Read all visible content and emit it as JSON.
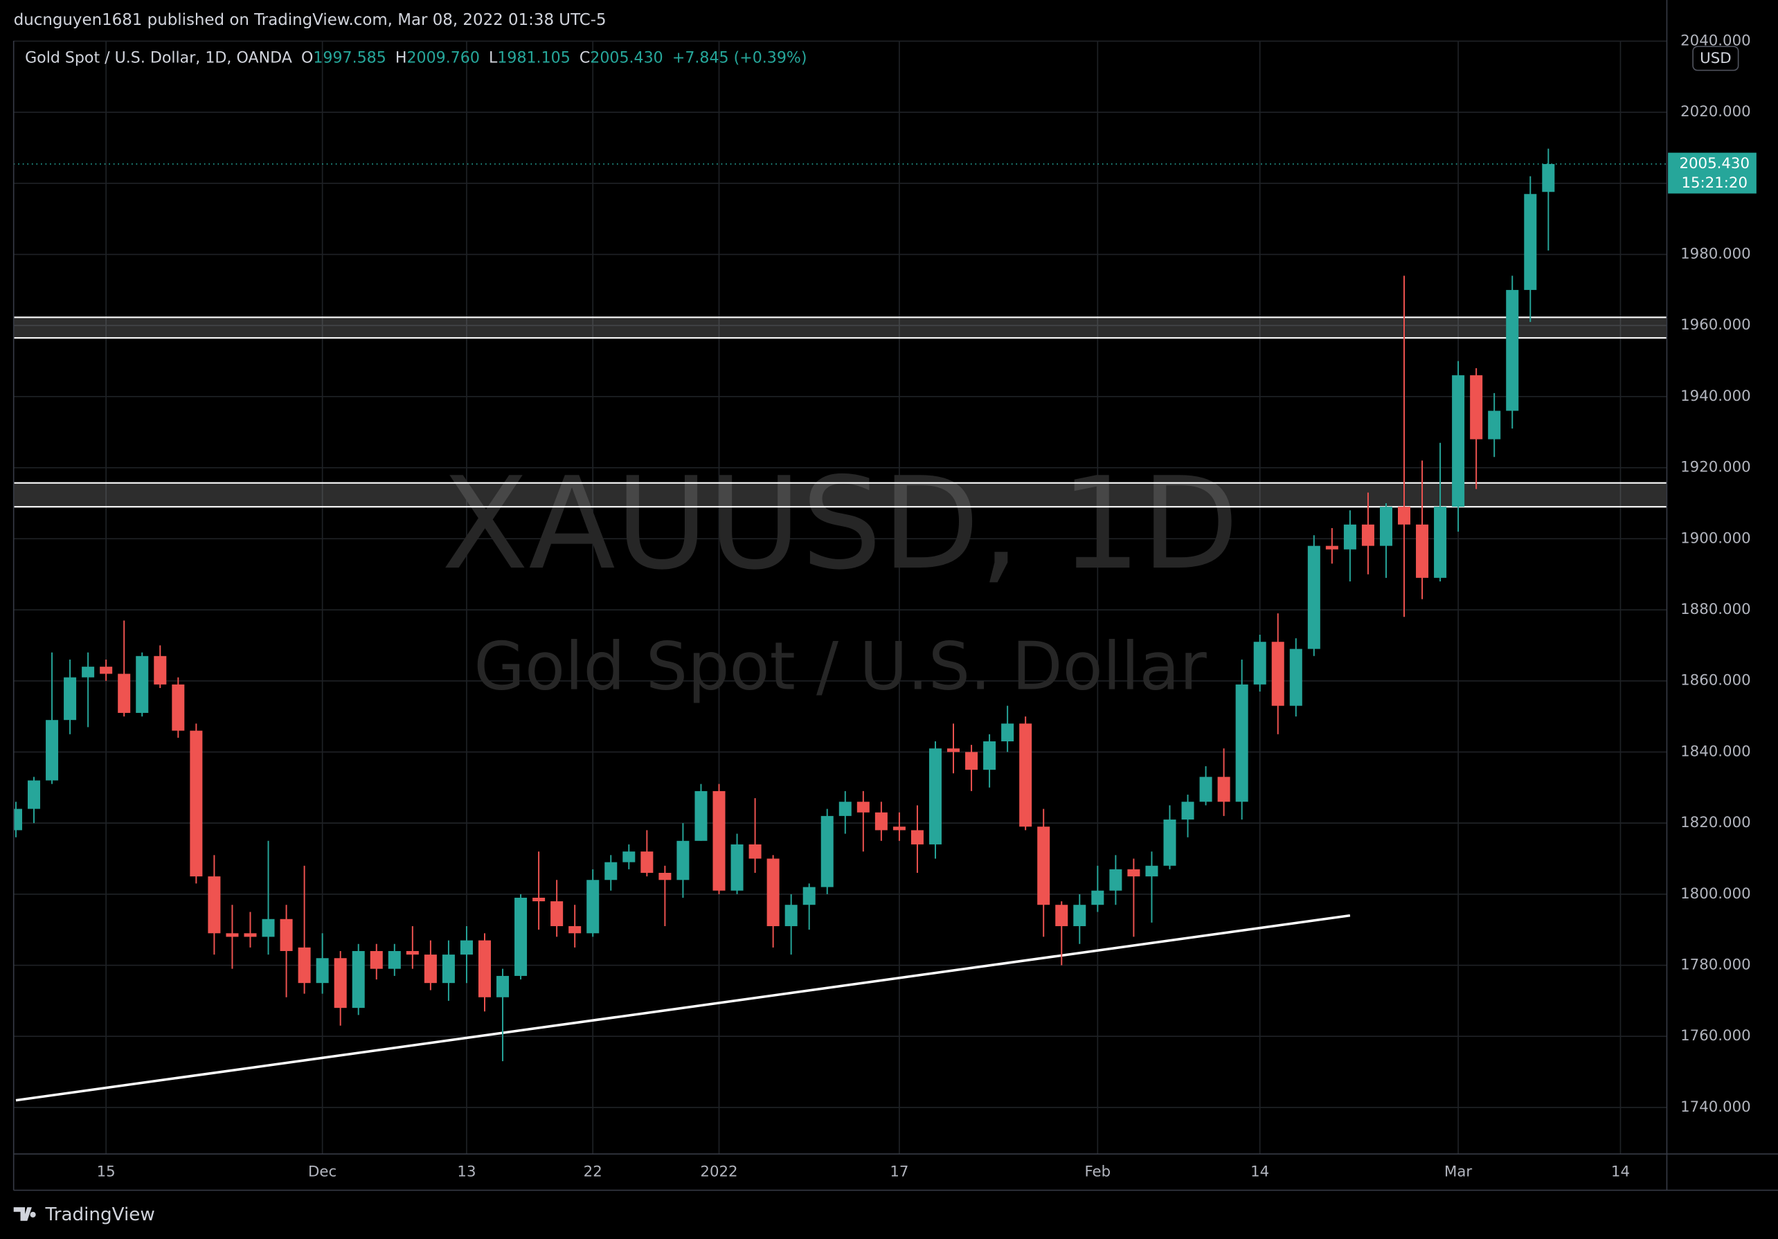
{
  "header": "ducnguyen1681 published on TradingView.com, Mar 08, 2022 01:38 UTC-5",
  "footer": "TradingView",
  "chart_data": {
    "type": "candlestick",
    "title": "Gold Spot / U.S. Dollar, 1D, OANDA",
    "legend": [
      {
        "label": "O",
        "value": "1997.585"
      },
      {
        "label": "H",
        "value": "2009.760"
      },
      {
        "label": "L",
        "value": "1981.105"
      },
      {
        "label": "C",
        "value": "2005.430"
      }
    ],
    "change": "+7.845 (+0.39%)",
    "watermark": [
      "XAUUSD, 1D",
      "Gold Spot / U.S. Dollar"
    ],
    "currency": "USD",
    "last_price": {
      "value": 2005.43,
      "label": "2005.430"
    },
    "countdown": "15:21:20",
    "up_color": "#26a69a",
    "down_color": "#ef5350",
    "grid": true,
    "categories": [
      null,
      null,
      null,
      null,
      null,
      "15",
      null,
      null,
      null,
      null,
      null,
      null,
      null,
      null,
      null,
      null,
      null,
      "Dec",
      null,
      null,
      null,
      null,
      null,
      null,
      null,
      "13",
      null,
      null,
      null,
      null,
      null,
      null,
      "22",
      null,
      null,
      null,
      null,
      null,
      null,
      "2022",
      null,
      null,
      null,
      null,
      null,
      null,
      null,
      null,
      null,
      "17",
      null,
      null,
      null,
      null,
      null,
      null,
      null,
      null,
      null,
      null,
      "Feb",
      null,
      null,
      null,
      null,
      null,
      null,
      null,
      null,
      "14",
      null,
      null,
      null,
      null,
      null,
      null,
      null,
      null,
      null,
      null,
      "Mar",
      null,
      null,
      null,
      null,
      null,
      null,
      null,
      null,
      "14",
      null
    ],
    "open": [
      1818,
      1824,
      1832,
      1849,
      1861,
      1864,
      1862,
      1851,
      1867,
      1859,
      1846,
      1805,
      1789,
      1789,
      1788,
      1793,
      1785,
      1775,
      1782,
      1768,
      1784,
      1779,
      1784,
      1783,
      1775,
      1783,
      1787,
      1771,
      1777,
      1799,
      1798,
      1791,
      1789,
      1804,
      1809,
      1812,
      1806,
      1804,
      1815,
      1829,
      1801,
      1814,
      1810,
      1791,
      1797,
      1802,
      1822,
      1826,
      1823,
      1819,
      1818,
      1814,
      1841,
      1840,
      1835,
      1843,
      1848,
      1819,
      1797,
      1791,
      1797,
      1801,
      1807,
      1805,
      1808,
      1821,
      1826,
      1833,
      1826,
      1859,
      1871,
      1853,
      1869,
      1898,
      1897,
      1904,
      1898,
      1909,
      1904,
      1889,
      1909,
      1946,
      1928,
      1936,
      1970,
      1997.585,
      null,
      null,
      null,
      null,
      null
    ],
    "high": [
      1826,
      1833,
      1868,
      1866,
      1868,
      1866,
      1877,
      1868,
      1870,
      1861,
      1848,
      1811,
      1797,
      1795,
      1815,
      1797,
      1808,
      1789,
      1784,
      1786,
      1786,
      1786,
      1791,
      1787,
      1787,
      1791,
      1789,
      1779,
      1800,
      1812,
      1804,
      1797,
      1807,
      1811,
      1814,
      1818,
      1808,
      1820,
      1831,
      1831,
      1817,
      1827,
      1811,
      1800,
      1803,
      1824,
      1829,
      1829,
      1826,
      1823,
      1825,
      1843,
      1848,
      1842,
      1845,
      1853,
      1850,
      1824,
      1798,
      1800,
      1808,
      1811,
      1810,
      1812,
      1825,
      1828,
      1836,
      1841,
      1866,
      1873,
      1879,
      1872,
      1901,
      1903,
      1908,
      1913,
      1910,
      1974,
      1922,
      1927,
      1950,
      1948,
      1941,
      1974,
      2002,
      2009.76,
      null,
      null,
      null,
      null,
      null
    ],
    "low": [
      1816,
      1820,
      1831,
      1845,
      1847,
      1860,
      1850,
      1850,
      1858,
      1844,
      1803,
      1783,
      1779,
      1785,
      1783,
      1771,
      1772,
      1772,
      1763,
      1766,
      1776,
      1777,
      1779,
      1773,
      1770,
      1775,
      1767,
      1753,
      1776,
      1790,
      1788,
      1785,
      1788,
      1801,
      1807,
      1805,
      1791,
      1799,
      1815,
      1800,
      1800,
      1806,
      1785,
      1783,
      1790,
      1800,
      1817,
      1812,
      1815,
      1815,
      1806,
      1810,
      1834,
      1829,
      1830,
      1840,
      1818,
      1788,
      1780,
      1786,
      1795,
      1797,
      1788,
      1792,
      1807,
      1816,
      1825,
      1822,
      1821,
      1857,
      1845,
      1850,
      1867,
      1893,
      1888,
      1890,
      1889,
      1878,
      1883,
      1888,
      1902,
      1914,
      1923,
      1931,
      1961,
      1981.105,
      null,
      null,
      null,
      null,
      null
    ],
    "close": [
      1824,
      1832,
      1849,
      1861,
      1864,
      1862,
      1851,
      1867,
      1859,
      1846,
      1805,
      1789,
      1788,
      1788,
      1793,
      1784,
      1775,
      1782,
      1768,
      1784,
      1779,
      1784,
      1783,
      1775,
      1783,
      1787,
      1771,
      1777,
      1799,
      1798,
      1791,
      1789,
      1804,
      1809,
      1812,
      1806,
      1804,
      1815,
      1829,
      1801,
      1814,
      1810,
      1791,
      1797,
      1802,
      1822,
      1826,
      1823,
      1818,
      1818,
      1814,
      1841,
      1840,
      1835,
      1843,
      1848,
      1819,
      1797,
      1791,
      1797,
      1801,
      1807,
      1805,
      1808,
      1821,
      1826,
      1833,
      1826,
      1859,
      1871,
      1853,
      1869,
      1898,
      1897,
      1904,
      1898,
      1909,
      1904,
      1889,
      1909,
      1946,
      1928,
      1936,
      1970,
      1997,
      2005.43,
      null,
      null,
      null,
      null,
      null
    ],
    "ylim": [
      1726.9,
      2040.1
    ],
    "yticks": [
      {
        "value": 1740,
        "label": "1740.000"
      },
      {
        "value": 1760,
        "label": "1760.000"
      },
      {
        "value": 1780,
        "label": "1780.000"
      },
      {
        "value": 1800,
        "label": "1800.000"
      },
      {
        "value": 1820,
        "label": "1820.000"
      },
      {
        "value": 1840,
        "label": "1840.000"
      },
      {
        "value": 1860,
        "label": "1860.000"
      },
      {
        "value": 1880,
        "label": "1880.000"
      },
      {
        "value": 1900,
        "label": "1900.000"
      },
      {
        "value": 1920,
        "label": "1920.000"
      },
      {
        "value": 1940,
        "label": "1940.000"
      },
      {
        "value": 1960,
        "label": "1960.000"
      },
      {
        "value": 1980,
        "label": "1980.000"
      },
      {
        "value": 2000,
        "label": "2000.000"
      },
      {
        "value": 2020,
        "label": "2020.000"
      },
      {
        "value": 2040,
        "label": "2040.000"
      }
    ],
    "zones": [
      {
        "from": 1956.5,
        "to": 1962.3
      },
      {
        "from": 1909,
        "to": 1915.7
      }
    ],
    "trendline": {
      "x": [
        0,
        74
      ],
      "values": [
        1742,
        1794
      ]
    }
  }
}
